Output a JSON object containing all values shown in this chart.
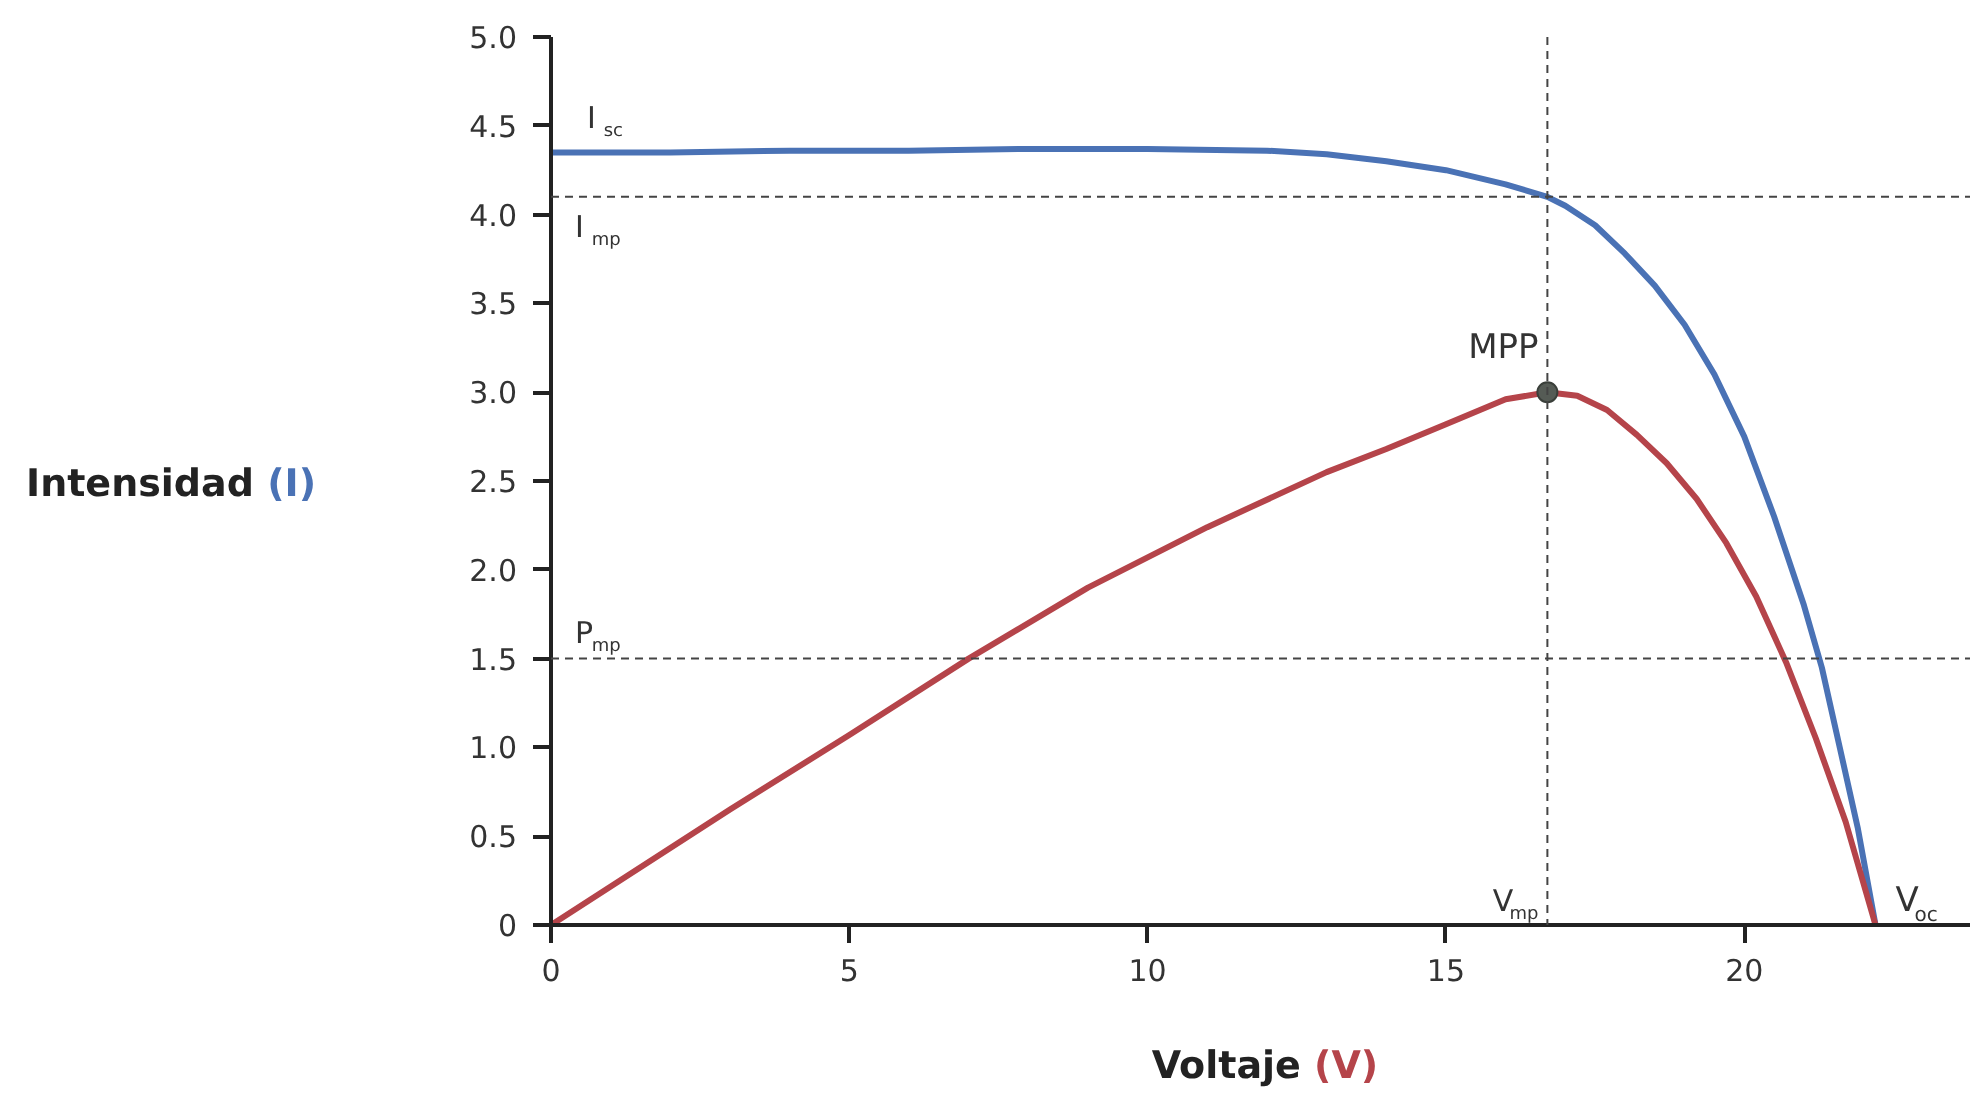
{
  "chart_data": {
    "type": "line",
    "xlabel": "Voltaje (V)",
    "ylabel": "Intensidad (I)",
    "xlim": [
      0,
      23.8
    ],
    "ylim": [
      0,
      5.0
    ],
    "xticks": [
      0,
      5,
      10,
      15,
      20
    ],
    "yticks": [
      0,
      {
        "value": 0.5,
        "label": "0.5"
      },
      {
        "value": 1,
        "label": "1.0"
      },
      {
        "value": 1.5,
        "label": "1.5"
      },
      {
        "value": 2,
        "label": "2.0"
      },
      {
        "value": 2.5,
        "label": "2.5"
      },
      {
        "value": 3,
        "label": "3.0"
      },
      {
        "value": 3.5,
        "label": "3.5"
      },
      {
        "value": 4,
        "label": "4.0"
      },
      {
        "value": 4.5,
        "label": "4.5"
      },
      {
        "value": 5,
        "label": "5.0"
      }
    ],
    "grid": false,
    "marker": "none",
    "line_style": "solid",
    "series": [
      {
        "color": "#4a72b5",
        "x": [
          0,
          2,
          4,
          6,
          8,
          10,
          12,
          13,
          14,
          15,
          16,
          16.7,
          17,
          17.5,
          18,
          18.5,
          19,
          19.5,
          20,
          20.5,
          21,
          21.3,
          21.6,
          21.9,
          22.2
        ],
        "values": [
          4.35,
          4.35,
          4.36,
          4.36,
          4.37,
          4.37,
          4.36,
          4.34,
          4.3,
          4.25,
          4.17,
          4.1,
          4.05,
          3.94,
          3.78,
          3.6,
          3.38,
          3.1,
          2.75,
          2.3,
          1.8,
          1.45,
          1.0,
          0.55,
          0
        ]
      },
      {
        "color": "#b5444a",
        "x": [
          0,
          3,
          5,
          7,
          9,
          11,
          13,
          14,
          15,
          16,
          16.7,
          17.2,
          17.7,
          18.2,
          18.7,
          19.2,
          19.7,
          20.2,
          20.7,
          21.2,
          21.7,
          22.2
        ],
        "values": [
          0,
          0.65,
          1.07,
          1.5,
          1.9,
          2.24,
          2.55,
          2.68,
          2.82,
          2.96,
          3.0,
          2.98,
          2.9,
          2.76,
          2.6,
          2.4,
          2.15,
          1.85,
          1.48,
          1.05,
          0.58,
          0
        ]
      },
      {
        "type": "scatter",
        "marker": "circle",
        "color": "#555b55",
        "x": [
          16.7
        ],
        "values": [
          3.0
        ]
      }
    ],
    "ref_lines": [
      {
        "axis": "y",
        "value": 4.1,
        "label": "I$_{mp}$",
        "color": "#444444",
        "line_style": "dashed"
      },
      {
        "axis": "y",
        "value": 1.5,
        "label": "P$_{mp}$",
        "color": "#444444",
        "line_style": "dashed"
      },
      {
        "axis": "x",
        "value": 16.7,
        "label": "V$_{mp}$",
        "color": "#444444",
        "line_style": "dashed"
      }
    ],
    "annotations": [
      {
        "text": "I$_{sc}$",
        "x": 0,
        "y": 4.35
      },
      {
        "text": "MPP",
        "x": 16.7,
        "y": 3.0
      },
      {
        "text": "V$_{oc}$",
        "x": 22.2,
        "y": 0
      }
    ]
  }
}
